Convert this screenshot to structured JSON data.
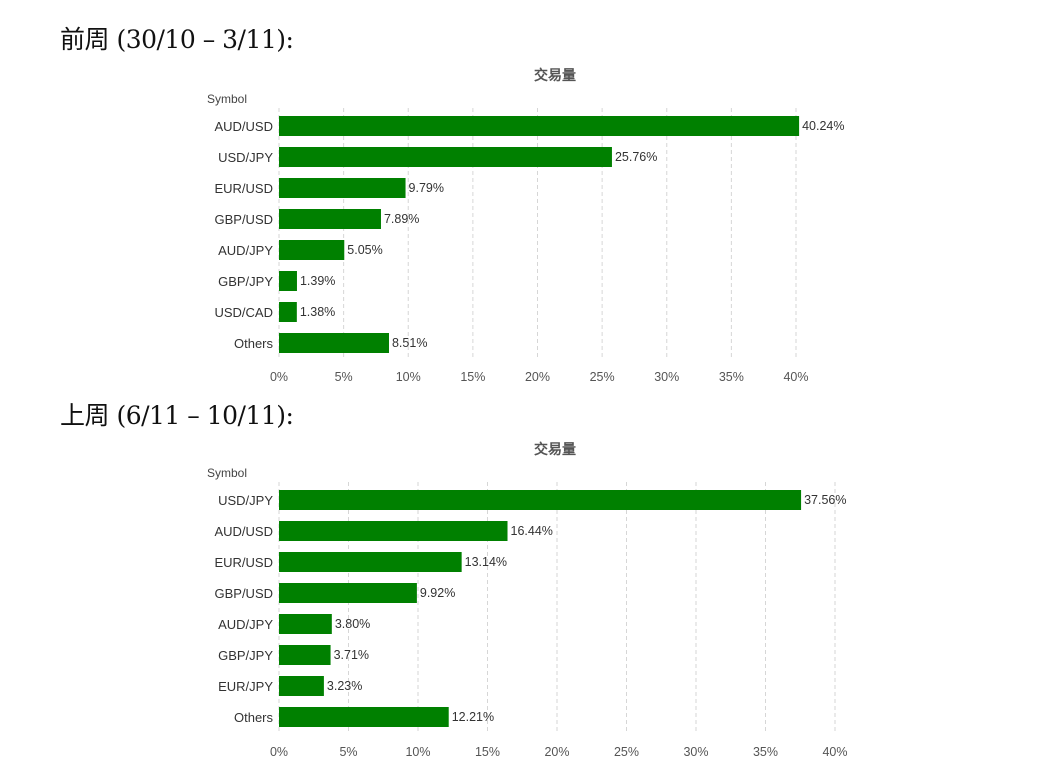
{
  "headings": [
    "前周 (30/10 – 3/11):",
    "上周 (6/11 – 10/11):"
  ],
  "chart_data": [
    {
      "type": "bar",
      "orientation": "horizontal",
      "title": "交易量",
      "ylabel": "Symbol",
      "categories": [
        "AUD/USD",
        "USD/JPY",
        "EUR/USD",
        "GBP/USD",
        "AUD/JPY",
        "GBP/JPY",
        "USD/CAD",
        "Others"
      ],
      "values": [
        40.24,
        25.76,
        9.79,
        7.89,
        5.05,
        1.39,
        1.38,
        8.51
      ],
      "value_labels": [
        "40.24%",
        "25.76%",
        "9.79%",
        "7.89%",
        "5.05%",
        "1.39%",
        "1.38%",
        "8.51%"
      ],
      "xlim": [
        0,
        40
      ],
      "xticks": [
        0,
        5,
        10,
        15,
        20,
        25,
        30,
        35,
        40
      ],
      "xtick_labels": [
        "0%",
        "5%",
        "10%",
        "15%",
        "20%",
        "25%",
        "30%",
        "35%",
        "40%"
      ],
      "grid": true,
      "color": "#008000"
    },
    {
      "type": "bar",
      "orientation": "horizontal",
      "title": "交易量",
      "ylabel": "Symbol",
      "categories": [
        "USD/JPY",
        "AUD/USD",
        "EUR/USD",
        "GBP/USD",
        "AUD/JPY",
        "GBP/JPY",
        "EUR/JPY",
        "Others"
      ],
      "values": [
        37.56,
        16.44,
        13.14,
        9.92,
        3.8,
        3.71,
        3.23,
        12.21
      ],
      "value_labels": [
        "37.56%",
        "16.44%",
        "13.14%",
        "9.92%",
        "3.80%",
        "3.71%",
        "3.23%",
        "12.21%"
      ],
      "xlim": [
        0,
        40
      ],
      "xticks": [
        0,
        5,
        10,
        15,
        20,
        25,
        30,
        35,
        40
      ],
      "xtick_labels": [
        "0%",
        "5%",
        "10%",
        "15%",
        "20%",
        "25%",
        "30%",
        "35%",
        "40%"
      ],
      "grid": true,
      "color": "#008000"
    }
  ]
}
